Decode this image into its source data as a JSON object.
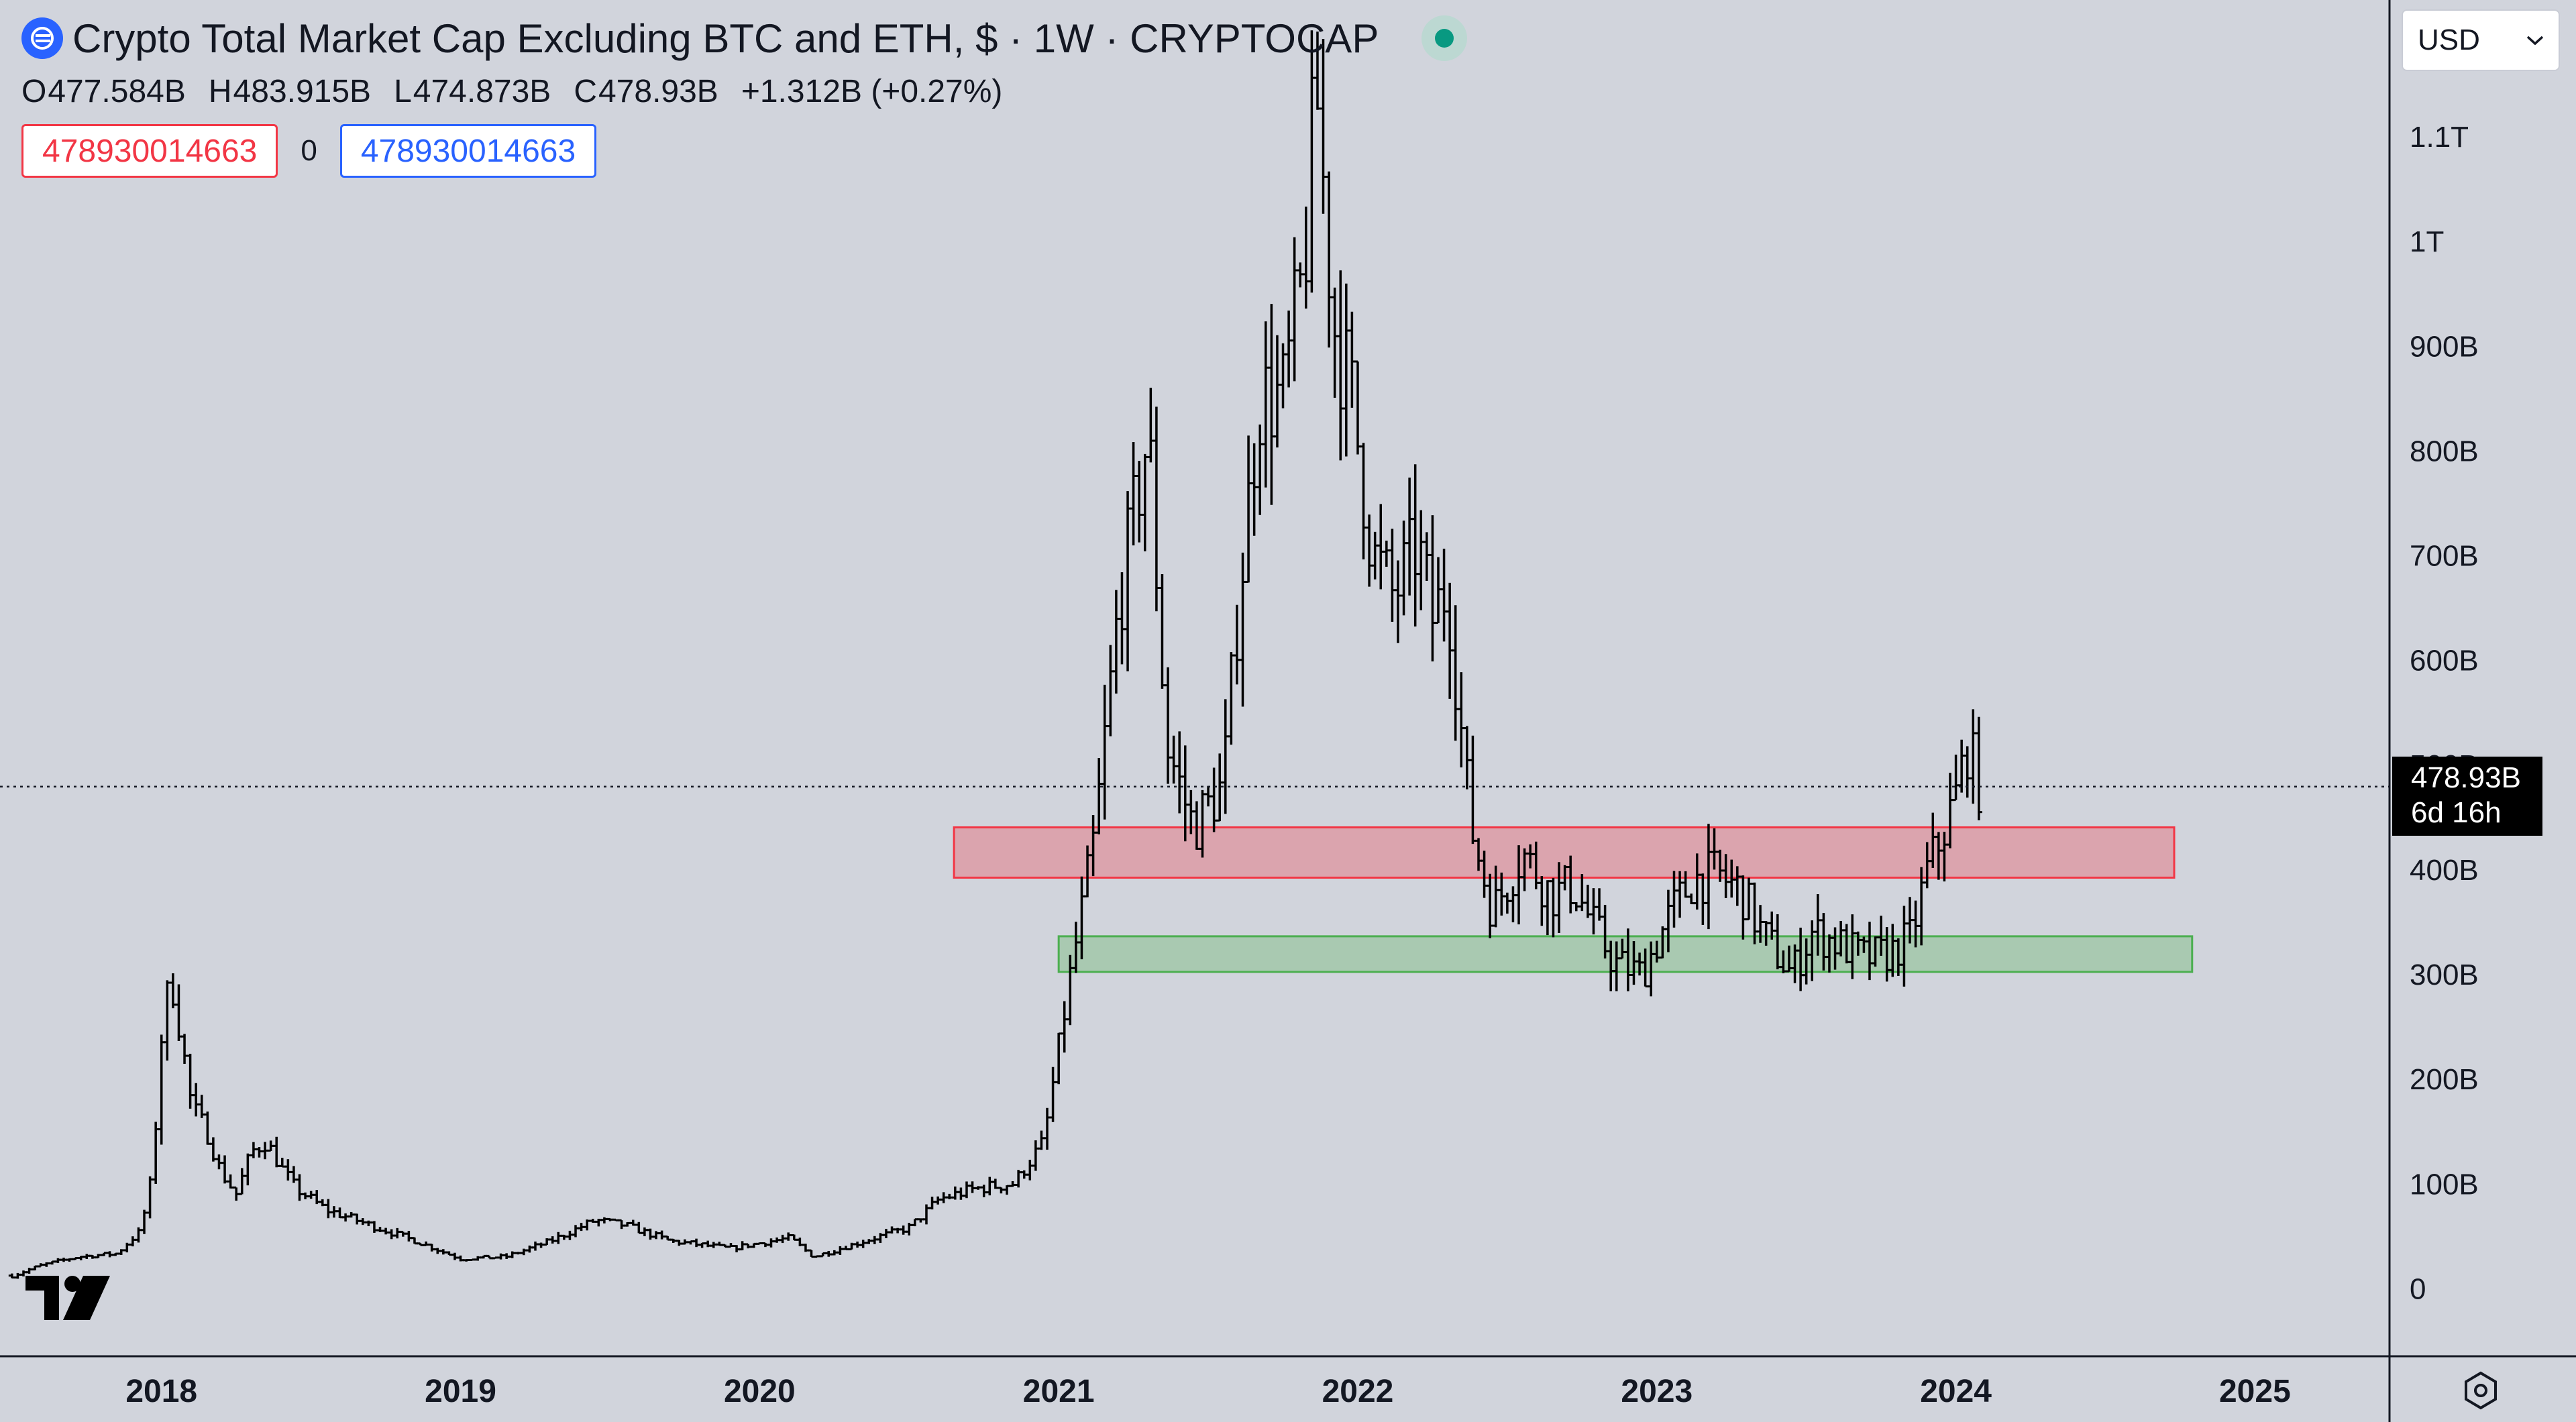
{
  "header": {
    "title": "Crypto Total Market Cap Excluding BTC and ETH, $ · 1W · CRYPTOCAP",
    "ohlc": [
      {
        "key": "O",
        "value": "477.584B"
      },
      {
        "key": "H",
        "value": "483.915B"
      },
      {
        "key": "L",
        "value": "474.873B"
      },
      {
        "key": "C",
        "value": "478.93B"
      }
    ],
    "change": "+1.312B (+0.27%)",
    "pill_left": "478930014663",
    "pill_mid": "0",
    "pill_right": "478930014663",
    "status_color": "#089981"
  },
  "currency": {
    "value": "USD"
  },
  "last_price": {
    "value": "478.93B",
    "countdown": "6d 16h"
  },
  "colors": {
    "background": "#d1d4dc",
    "bars": "#000000",
    "resistance_zone": "#f23645",
    "support_zone": "#4caf50",
    "accent": "#2962ff"
  },
  "icons": {
    "logo": "tradingview-logo",
    "settings": "settings-icon",
    "symbol": "cryptocap-logo-icon",
    "status": "live-status-dot"
  },
  "chart_data": {
    "type": "ohlc",
    "interval": "1W",
    "x_unit": "year",
    "y_unit": "USD billions",
    "xlim": [
      2017.46,
      2025.45
    ],
    "ylim": [
      -65,
      1230
    ],
    "x_tick_labels": [
      "2018",
      "2019",
      "2020",
      "2021",
      "2022",
      "2023",
      "2024",
      "2025"
    ],
    "x_tick_values": [
      2018,
      2019,
      2020,
      2021,
      2022,
      2023,
      2024,
      2025
    ],
    "y_tick_labels": [
      "0",
      "100B",
      "200B",
      "300B",
      "400B",
      "500B",
      "600B",
      "700B",
      "800B",
      "900B",
      "1T",
      "1.1T"
    ],
    "y_tick_values": [
      0,
      100,
      200,
      300,
      400,
      500,
      600,
      700,
      800,
      900,
      1000,
      1100
    ],
    "last_value": 478.93,
    "zones": [
      {
        "label": "resistance",
        "x_start": 2020.65,
        "x_end": 2024.73,
        "y_low": 392,
        "y_high": 440,
        "color": "#f23645"
      },
      {
        "label": "support",
        "x_start": 2021.0,
        "x_end": 2024.79,
        "y_low": 302,
        "y_high": 336,
        "color": "#4caf50"
      }
    ],
    "anchors": [
      [
        2017.5,
        12
      ],
      [
        2017.6,
        22
      ],
      [
        2017.72,
        30
      ],
      [
        2017.85,
        33
      ],
      [
        2017.93,
        55
      ],
      [
        2017.97,
        110
      ],
      [
        2018.0,
        240
      ],
      [
        2018.03,
        300
      ],
      [
        2018.06,
        250
      ],
      [
        2018.1,
        175
      ],
      [
        2018.15,
        150
      ],
      [
        2018.2,
        110
      ],
      [
        2018.25,
        90
      ],
      [
        2018.3,
        130
      ],
      [
        2018.35,
        140
      ],
      [
        2018.4,
        115
      ],
      [
        2018.45,
        95
      ],
      [
        2018.55,
        75
      ],
      [
        2018.7,
        60
      ],
      [
        2018.85,
        45
      ],
      [
        2019.0,
        28
      ],
      [
        2019.15,
        30
      ],
      [
        2019.3,
        45
      ],
      [
        2019.45,
        65
      ],
      [
        2019.55,
        60
      ],
      [
        2019.7,
        45
      ],
      [
        2019.9,
        38
      ],
      [
        2020.1,
        48
      ],
      [
        2020.18,
        30
      ],
      [
        2020.35,
        45
      ],
      [
        2020.5,
        58
      ],
      [
        2020.6,
        85
      ],
      [
        2020.72,
        95
      ],
      [
        2020.85,
        100
      ],
      [
        2020.95,
        140
      ],
      [
        2021.04,
        300
      ],
      [
        2021.12,
        430
      ],
      [
        2021.2,
        650
      ],
      [
        2021.3,
        820
      ],
      [
        2021.36,
        520
      ],
      [
        2021.45,
        440
      ],
      [
        2021.55,
        480
      ],
      [
        2021.6,
        650
      ],
      [
        2021.67,
        850
      ],
      [
        2021.75,
        850
      ],
      [
        2021.82,
        970
      ],
      [
        2021.86,
        1150
      ],
      [
        2021.92,
        920
      ],
      [
        2021.98,
        850
      ],
      [
        2022.05,
        700
      ],
      [
        2022.12,
        660
      ],
      [
        2022.2,
        710
      ],
      [
        2022.25,
        640
      ],
      [
        2022.3,
        670
      ],
      [
        2022.35,
        520
      ],
      [
        2022.38,
        440
      ],
      [
        2022.45,
        360
      ],
      [
        2022.55,
        415
      ],
      [
        2022.65,
        375
      ],
      [
        2022.72,
        385
      ],
      [
        2022.78,
        350
      ],
      [
        2022.86,
        310
      ],
      [
        2022.95,
        300
      ],
      [
        2023.05,
        360
      ],
      [
        2023.12,
        390
      ],
      [
        2023.2,
        395
      ],
      [
        2023.28,
        380
      ],
      [
        2023.35,
        340
      ],
      [
        2023.45,
        300
      ],
      [
        2023.52,
        340
      ],
      [
        2023.6,
        330
      ],
      [
        2023.7,
        315
      ],
      [
        2023.78,
        320
      ],
      [
        2023.85,
        335
      ],
      [
        2023.9,
        395
      ],
      [
        2023.95,
        430
      ],
      [
        2024.0,
        470
      ],
      [
        2024.04,
        520
      ],
      [
        2024.07,
        485
      ],
      [
        2024.09,
        478.93
      ]
    ]
  }
}
